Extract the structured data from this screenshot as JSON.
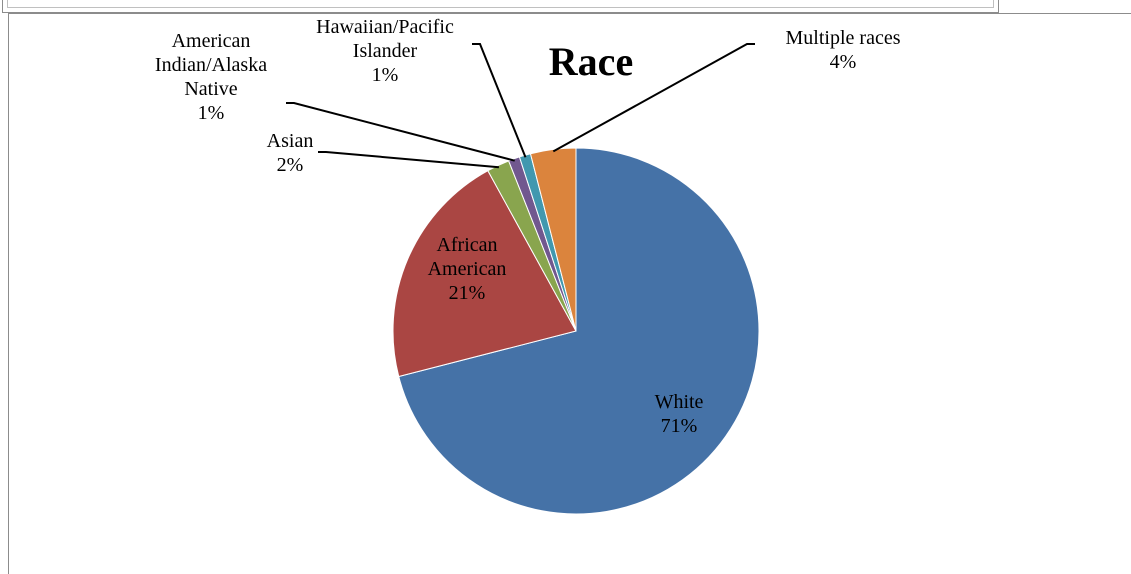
{
  "chart_data": {
    "type": "pie",
    "title": "Race",
    "categories": [
      "White",
      "African American",
      "Asian",
      "American Indian/Alaska Native",
      "Hawaiian/Pacific Islander",
      "Multiple races"
    ],
    "values": [
      71,
      21,
      2,
      1,
      1,
      4
    ],
    "value_labels": [
      "71%",
      "21%",
      "2%",
      "1%",
      "1%",
      "4%"
    ],
    "colors": [
      "#4572a7",
      "#aa4643",
      "#89a54e",
      "#71588f",
      "#4198af",
      "#db843d"
    ],
    "label_lines": [
      [
        "White",
        "71%"
      ],
      [
        "African",
        "American",
        "21%"
      ],
      [
        "Asian",
        "2%"
      ],
      [
        "American",
        "Indian/Alaska",
        "Native",
        "1%"
      ],
      [
        "Hawaiian/Pacific",
        "Islander",
        "1%"
      ],
      [
        "Multiple races",
        "4%"
      ]
    ],
    "legend": "none"
  }
}
